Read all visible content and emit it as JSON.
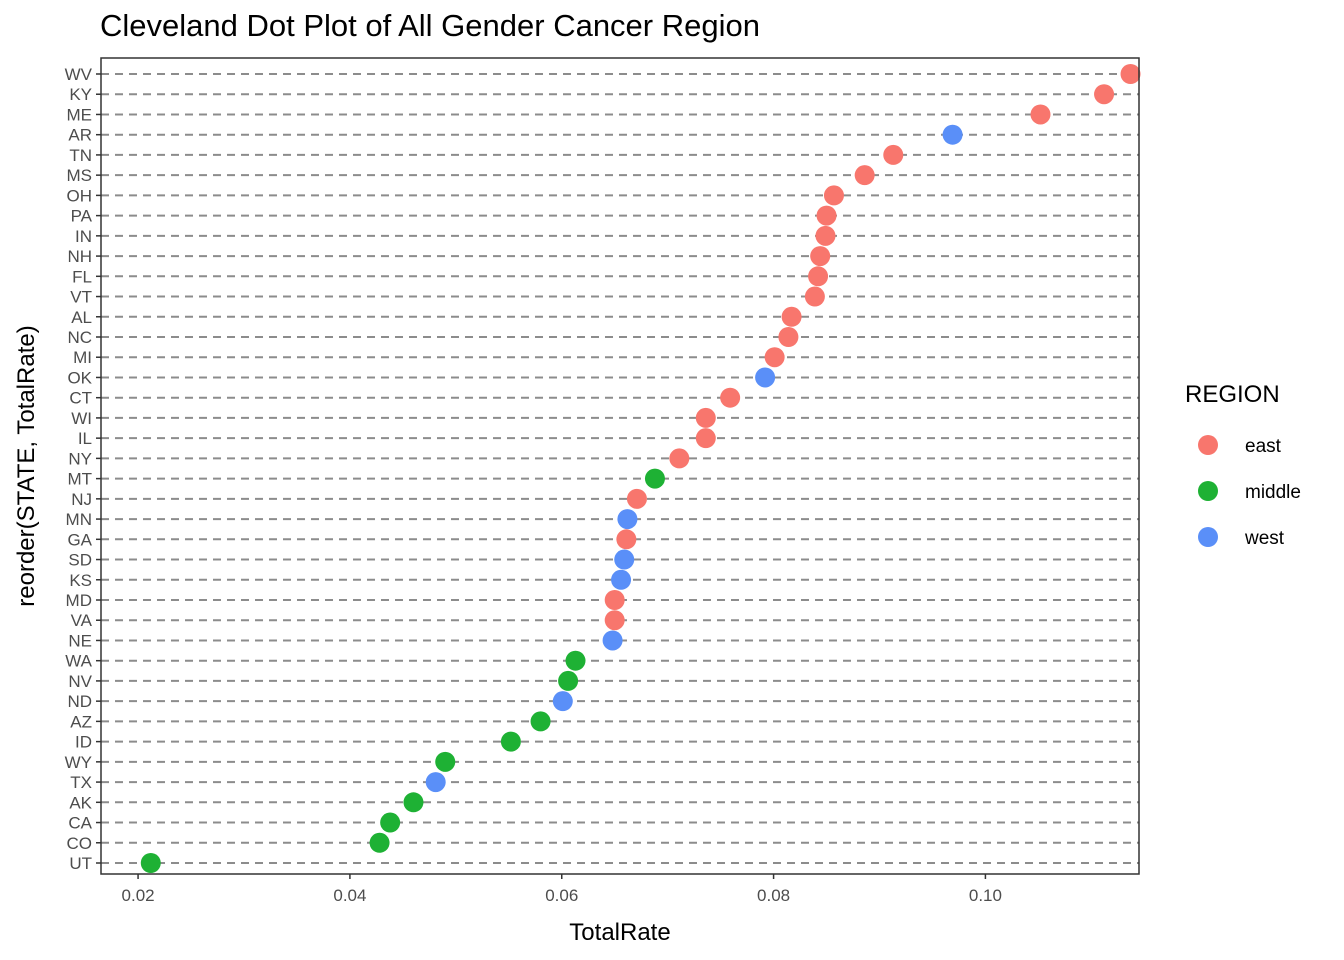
{
  "chart_data": {
    "type": "scatter",
    "title": "Cleveland Dot Plot of All Gender Cancer Region",
    "xlabel": "TotalRate",
    "ylabel": "reorder(STATE, TotalRate)",
    "xlim": [
      0.0165,
      0.1145
    ],
    "x_ticks": [
      {
        "value": 0.02,
        "label": "0.02"
      },
      {
        "value": 0.04,
        "label": "0.04"
      },
      {
        "value": 0.06,
        "label": "0.06"
      },
      {
        "value": 0.08,
        "label": "0.08"
      },
      {
        "value": 0.1,
        "label": "0.10"
      }
    ],
    "grid": "dashed horizontal lines at each state",
    "legend": {
      "title": "REGION",
      "placement": "right",
      "entries": [
        {
          "name": "east",
          "color": "#F8766D"
        },
        {
          "name": "middle",
          "color": "#1EB134"
        },
        {
          "name": "west",
          "color": "#5A8FF8"
        }
      ]
    },
    "categories": [
      "UT",
      "CO",
      "CA",
      "AK",
      "TX",
      "WY",
      "ID",
      "AZ",
      "ND",
      "NV",
      "WA",
      "NE",
      "VA",
      "MD",
      "KS",
      "SD",
      "GA",
      "MN",
      "NJ",
      "MT",
      "NY",
      "IL",
      "WI",
      "CT",
      "OK",
      "MI",
      "NC",
      "AL",
      "VT",
      "FL",
      "NH",
      "IN",
      "PA",
      "OH",
      "MS",
      "TN",
      "AR",
      "ME",
      "KY",
      "WV"
    ],
    "points": [
      {
        "state": "UT",
        "value": 0.0212,
        "region": "middle"
      },
      {
        "state": "CO",
        "value": 0.0428,
        "region": "middle"
      },
      {
        "state": "CA",
        "value": 0.0438,
        "region": "middle"
      },
      {
        "state": "AK",
        "value": 0.046,
        "region": "middle"
      },
      {
        "state": "TX",
        "value": 0.0481,
        "region": "west"
      },
      {
        "state": "WY",
        "value": 0.049,
        "region": "middle"
      },
      {
        "state": "ID",
        "value": 0.0552,
        "region": "middle"
      },
      {
        "state": "AZ",
        "value": 0.058,
        "region": "middle"
      },
      {
        "state": "ND",
        "value": 0.0601,
        "region": "west"
      },
      {
        "state": "NV",
        "value": 0.0606,
        "region": "middle"
      },
      {
        "state": "WA",
        "value": 0.0613,
        "region": "middle"
      },
      {
        "state": "NE",
        "value": 0.0648,
        "region": "west"
      },
      {
        "state": "VA",
        "value": 0.065,
        "region": "east"
      },
      {
        "state": "MD",
        "value": 0.065,
        "region": "east"
      },
      {
        "state": "KS",
        "value": 0.0656,
        "region": "west"
      },
      {
        "state": "SD",
        "value": 0.0659,
        "region": "west"
      },
      {
        "state": "GA",
        "value": 0.0661,
        "region": "east"
      },
      {
        "state": "MN",
        "value": 0.0662,
        "region": "west"
      },
      {
        "state": "NJ",
        "value": 0.0671,
        "region": "east"
      },
      {
        "state": "MT",
        "value": 0.0688,
        "region": "middle"
      },
      {
        "state": "NY",
        "value": 0.0711,
        "region": "east"
      },
      {
        "state": "IL",
        "value": 0.0736,
        "region": "east"
      },
      {
        "state": "WI",
        "value": 0.0736,
        "region": "east"
      },
      {
        "state": "CT",
        "value": 0.0759,
        "region": "east"
      },
      {
        "state": "OK",
        "value": 0.0792,
        "region": "west"
      },
      {
        "state": "MI",
        "value": 0.0801,
        "region": "east"
      },
      {
        "state": "NC",
        "value": 0.0814,
        "region": "east"
      },
      {
        "state": "AL",
        "value": 0.0817,
        "region": "east"
      },
      {
        "state": "VT",
        "value": 0.0839,
        "region": "east"
      },
      {
        "state": "FL",
        "value": 0.0842,
        "region": "east"
      },
      {
        "state": "NH",
        "value": 0.0844,
        "region": "east"
      },
      {
        "state": "IN",
        "value": 0.0849,
        "region": "east"
      },
      {
        "state": "PA",
        "value": 0.085,
        "region": "east"
      },
      {
        "state": "OH",
        "value": 0.0857,
        "region": "east"
      },
      {
        "state": "MS",
        "value": 0.0886,
        "region": "east"
      },
      {
        "state": "TN",
        "value": 0.0913,
        "region": "east"
      },
      {
        "state": "AR",
        "value": 0.0969,
        "region": "west"
      },
      {
        "state": "ME",
        "value": 0.1052,
        "region": "east"
      },
      {
        "state": "KY",
        "value": 0.1112,
        "region": "east"
      },
      {
        "state": "WV",
        "value": 0.1137,
        "region": "east"
      }
    ]
  }
}
